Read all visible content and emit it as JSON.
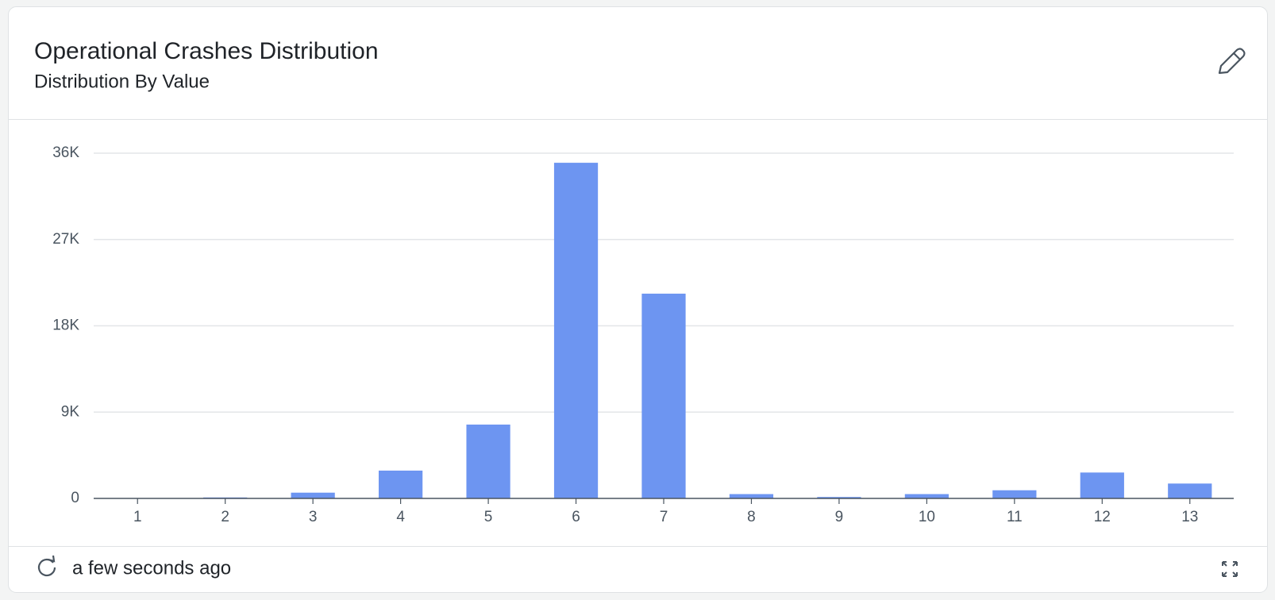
{
  "chart_data": {
    "type": "bar",
    "title": "Operational Crashes Distribution",
    "subtitle": "Distribution By Value",
    "footer": "a few seconds ago",
    "categories": [
      "1",
      "2",
      "3",
      "4",
      "5",
      "6",
      "7",
      "8",
      "9",
      "10",
      "11",
      "12",
      "13"
    ],
    "values": [
      20,
      100,
      600,
      2900,
      7700,
      35000,
      21350,
      450,
      150,
      450,
      850,
      2700,
      1550
    ],
    "color": "#6d95f1",
    "ylim": [
      0,
      36000
    ],
    "yticks": [
      0,
      {
        "value": 9000,
        "label": "9K"
      },
      {
        "value": 18000,
        "label": "18K"
      },
      {
        "value": 27000,
        "label": "27K"
      },
      {
        "value": 36000,
        "label": "36K"
      }
    ],
    "grid": true
  }
}
